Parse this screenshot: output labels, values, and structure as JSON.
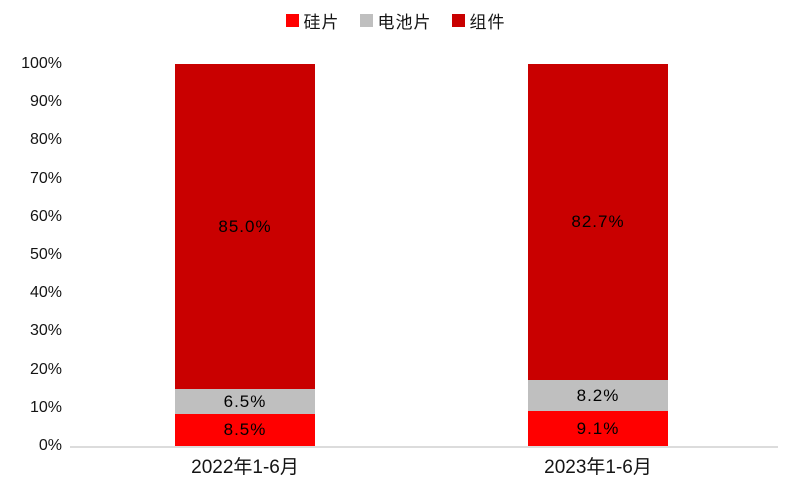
{
  "chart_data": {
    "type": "bar",
    "stacked": true,
    "title": "",
    "xlabel": "",
    "ylabel": "",
    "ylim": [
      0,
      100
    ],
    "grid": false,
    "legend_position": "top",
    "categories": [
      "2022年1-6月",
      "2023年1-6月"
    ],
    "category_slugs": [
      "2022-h1",
      "2023-h1"
    ],
    "series": [
      {
        "name": "硅片",
        "slug": "silicon-wafer",
        "color": "#ff0000",
        "values": [
          8.5,
          9.1
        ],
        "labels": [
          "8.5%",
          "9.1%"
        ]
      },
      {
        "name": "电池片",
        "slug": "solar-cell",
        "color": "#bfbfbf",
        "values": [
          6.5,
          8.2
        ],
        "labels": [
          "6.5%",
          "8.2%"
        ]
      },
      {
        "name": "组件",
        "slug": "module",
        "color": "#c90000",
        "values": [
          85.0,
          82.7
        ],
        "labels": [
          "85.0%",
          "82.7%"
        ]
      }
    ],
    "ytick_labels": [
      "0%",
      "10%",
      "20%",
      "30%",
      "40%",
      "50%",
      "60%",
      "70%",
      "80%",
      "90%",
      "100%"
    ],
    "axis_line_color": "#dcdcdc",
    "label_color": "#000000"
  }
}
